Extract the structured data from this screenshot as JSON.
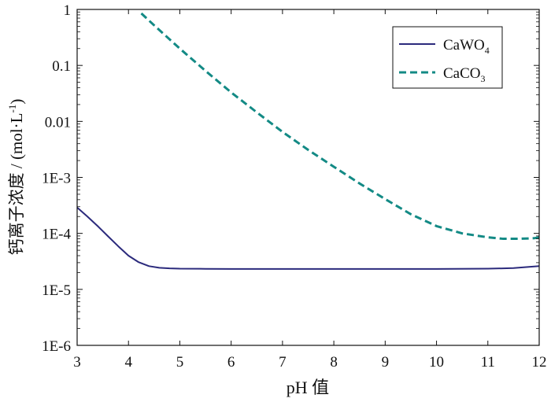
{
  "chart_data": {
    "type": "line",
    "xlabel": "pH 值",
    "ylabel": {
      "main": "钙离子浓度 / (mol·L",
      "sup": "-1",
      "close": ")"
    },
    "xlim": [
      3,
      12
    ],
    "ylim": [
      1e-06,
      1
    ],
    "yscale": "log",
    "x_ticks": [
      3,
      4,
      5,
      6,
      7,
      8,
      9,
      10,
      11,
      12
    ],
    "x_tick_labels": [
      "3",
      "4",
      "5",
      "6",
      "7",
      "8",
      "9",
      "10",
      "11",
      "12"
    ],
    "y_ticks": [
      1e-06,
      1e-05,
      0.0001,
      0.001,
      0.01,
      0.1,
      1
    ],
    "y_tick_labels": [
      "1E-6",
      "1E-5",
      "1E-4",
      "1E-3",
      "0.01",
      "0.1",
      "1"
    ],
    "grid": false,
    "legend_position": "top-right",
    "series": [
      {
        "name": "CaWO4",
        "label_base": "CaWO",
        "label_sub": "4",
        "style": "solid",
        "color": "#2b2a7c",
        "x": [
          3.0,
          3.2,
          3.4,
          3.6,
          3.8,
          4.0,
          4.2,
          4.4,
          4.6,
          4.8,
          5.0,
          5.5,
          6.0,
          7.0,
          8.0,
          9.0,
          10.0,
          11.0,
          11.5,
          12.0
        ],
        "y": [
          0.00029,
          0.0002,
          0.000135,
          8.9e-05,
          5.9e-05,
          4e-05,
          3.05e-05,
          2.6e-05,
          2.43e-05,
          2.37e-05,
          2.34e-05,
          2.33e-05,
          2.32e-05,
          2.32e-05,
          2.32e-05,
          2.32e-05,
          2.32e-05,
          2.34e-05,
          2.4e-05,
          2.6e-05
        ]
      },
      {
        "name": "CaCO3",
        "label_base": "CaCO",
        "label_sub": "3",
        "style": "dashed",
        "color": "#138a85",
        "x": [
          4.25,
          4.5,
          5.0,
          5.5,
          6.0,
          6.5,
          7.0,
          7.5,
          8.0,
          8.5,
          9.0,
          9.5,
          10.0,
          10.5,
          11.0,
          11.3,
          11.6,
          11.9,
          12.0
        ],
        "y": [
          0.85,
          0.52,
          0.2,
          0.08,
          0.033,
          0.0145,
          0.0065,
          0.0031,
          0.00155,
          0.00078,
          0.00041,
          0.00022,
          0.000135,
          0.0001,
          8.5e-05,
          8e-05,
          8e-05,
          8.2e-05,
          8.5e-05
        ]
      }
    ]
  }
}
